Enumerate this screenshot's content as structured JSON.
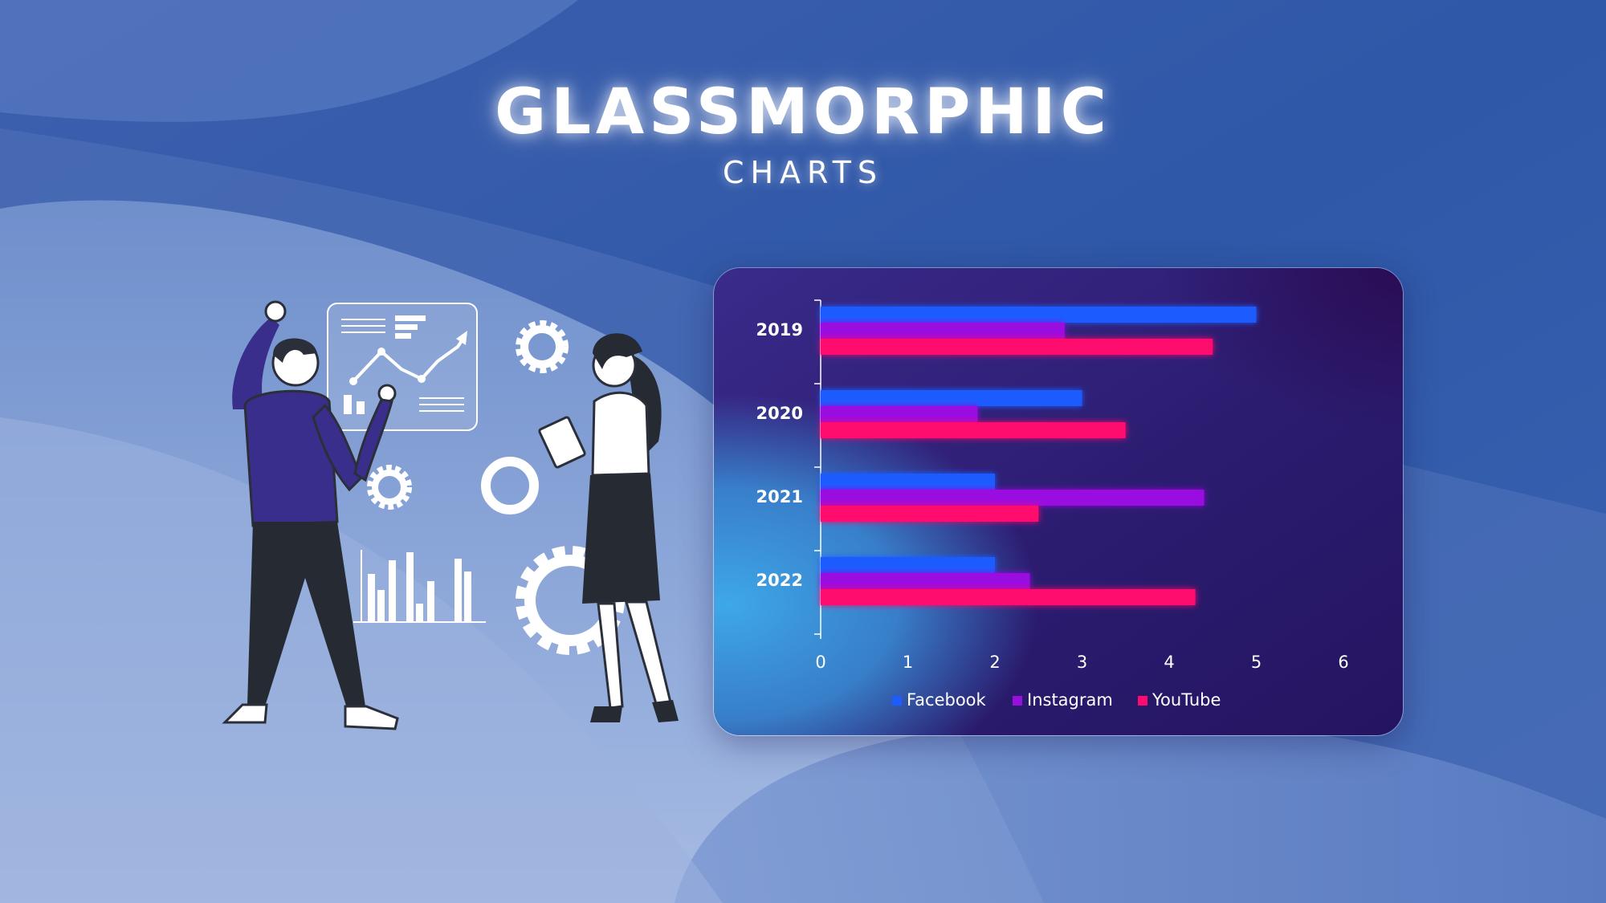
{
  "header": {
    "title": "GLASSMORPHIC",
    "subtitle": "CHARTS"
  },
  "colors": {
    "background": "#3f64b0",
    "card_dark": "#2a1a6e",
    "card_glow": "#3ea0e0",
    "facebook": "#1f5cff",
    "instagram": "#9a0fe0",
    "youtube": "#ff0a6e",
    "text": "#ffffff"
  },
  "illustration": {
    "man": "man-raising-hand",
    "woman": "woman-holding-tablet",
    "icons": [
      "dashboard-panel-icon",
      "line-chart-icon",
      "gear-icon",
      "bar-chart-icon",
      "ring-icon"
    ]
  },
  "chart_data": {
    "type": "bar",
    "orientation": "horizontal",
    "categories": [
      "2019",
      "2020",
      "2021",
      "2022"
    ],
    "series": [
      {
        "name": "Facebook",
        "values": [
          5.0,
          3.0,
          2.0,
          2.0
        ]
      },
      {
        "name": "Instagram",
        "values": [
          2.8,
          1.8,
          4.4,
          2.4
        ]
      },
      {
        "name": "YouTube",
        "values": [
          4.5,
          3.5,
          2.5,
          4.3
        ]
      }
    ],
    "xlim": [
      0,
      6
    ],
    "x_ticks": [
      "0",
      "1",
      "2",
      "3",
      "4",
      "5",
      "6"
    ],
    "xlabel": "",
    "ylabel": "",
    "title": "",
    "grid": false,
    "legend_position": "bottom"
  }
}
